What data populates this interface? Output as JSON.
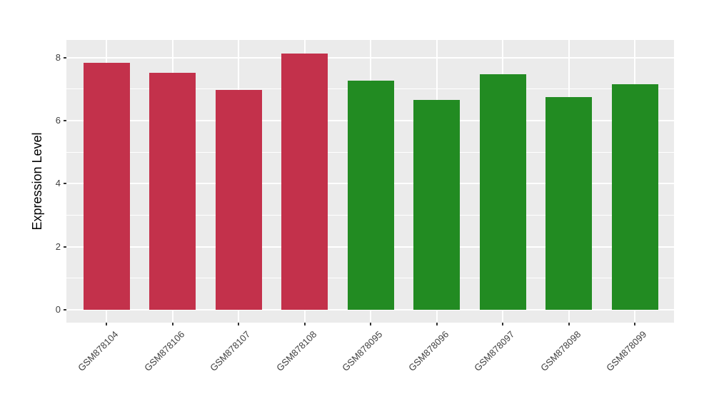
{
  "chart_data": {
    "type": "bar",
    "title": "",
    "xlabel": "",
    "ylabel": "Expression Level",
    "categories": [
      "GSM878104",
      "GSM878106",
      "GSM878107",
      "GSM878108",
      "GSM878095",
      "GSM878096",
      "GSM878097",
      "GSM878098",
      "GSM878099"
    ],
    "values": [
      7.83,
      7.51,
      6.98,
      8.14,
      7.26,
      6.67,
      7.47,
      6.76,
      7.16
    ],
    "groups": [
      "red",
      "red",
      "red",
      "red",
      "green",
      "green",
      "green",
      "green",
      "green"
    ],
    "group_colors": {
      "red": "#C3314B",
      "green": "#228B22"
    },
    "y_ticks": [
      0,
      2,
      4,
      6,
      8
    ],
    "y_minor_ticks": [
      1,
      3,
      5,
      7
    ],
    "ylim": [
      -0.41,
      8.56
    ],
    "grid": "on",
    "legend": "none",
    "panel_bg": "#EBEBEB",
    "grid_color": "#FFFFFF",
    "tick_color": "#333333",
    "tick_label_color": "#404040",
    "axis_title_color": "#000000"
  }
}
